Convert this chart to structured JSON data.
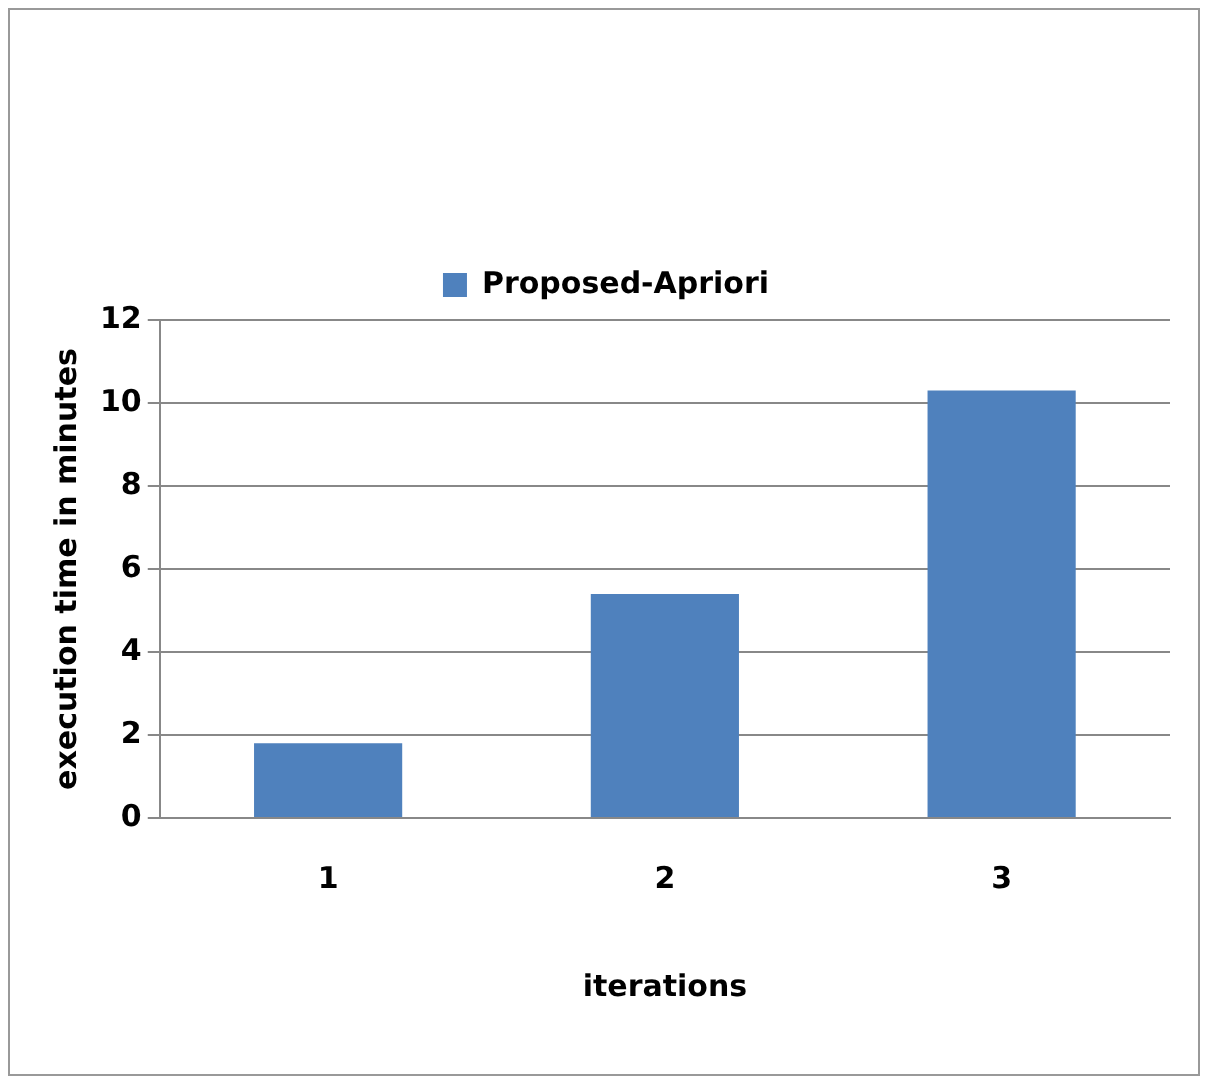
{
  "chart_data": {
    "type": "bar",
    "xlabel": "iterations",
    "ylabel": "execution time in minutes",
    "categories": [
      "1",
      "2",
      "3"
    ],
    "series": [
      {
        "name": "Proposed-Apriori",
        "color": "#4f81bd",
        "values": [
          1.8,
          5.4,
          10.3
        ]
      }
    ],
    "ylim": [
      0,
      12
    ],
    "yticks": [
      0,
      2,
      4,
      6,
      8,
      10,
      12
    ],
    "grid": "y",
    "legend": "top"
  }
}
